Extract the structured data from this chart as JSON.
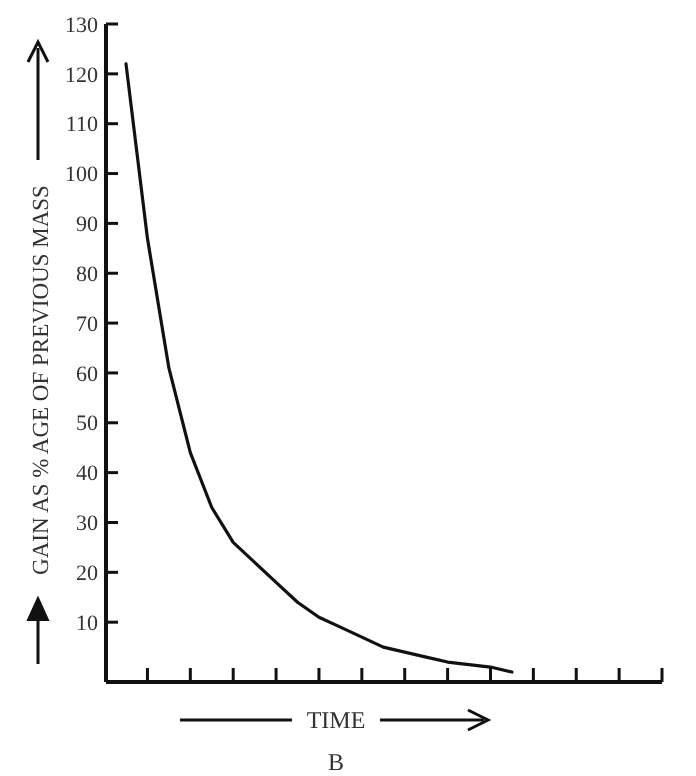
{
  "chart_data": {
    "type": "line",
    "xlabel": "TIME",
    "ylabel": "GAIN AS % AGE OF PREVIOUS MASS",
    "annotations": [
      "B"
    ],
    "categories": [
      null,
      null,
      null,
      null,
      null,
      null,
      null,
      null,
      null,
      null,
      null,
      null,
      null,
      null,
      null,
      null,
      null,
      null,
      null,
      null,
      null,
      null,
      null,
      null,
      null,
      null
    ],
    "series": [
      {
        "color": "#111111",
        "values": [
          122,
          87,
          61,
          44,
          33,
          26,
          22,
          18,
          14,
          11,
          9,
          7,
          5,
          4,
          3,
          2,
          1.5,
          1,
          0,
          null,
          null,
          null,
          null,
          null,
          null,
          null
        ]
      }
    ],
    "ylim": [
      -2,
      130
    ],
    "yticks": [
      10,
      20,
      30,
      40,
      50,
      60,
      70,
      80,
      90,
      100,
      110,
      120,
      130
    ],
    "tick_labels": "y",
    "grid": false,
    "marker": "none",
    "line_style": "solid"
  }
}
